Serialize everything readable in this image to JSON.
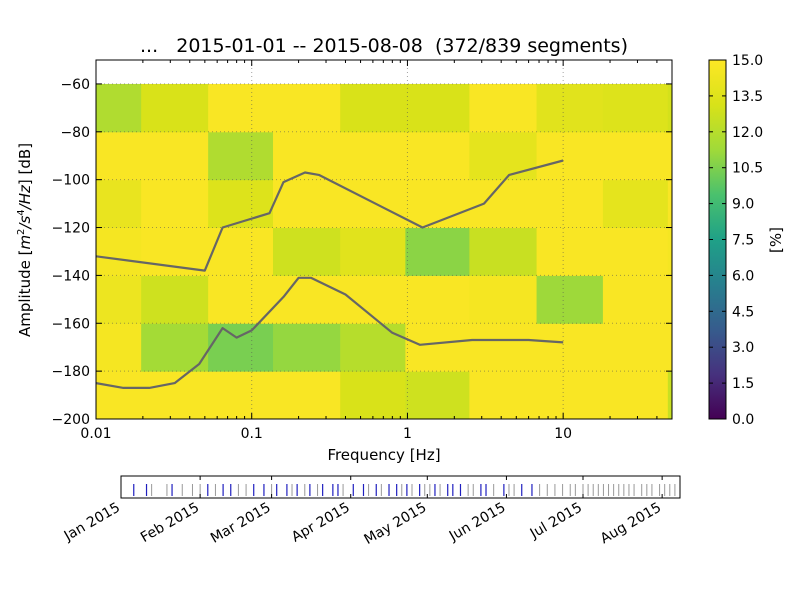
{
  "chart_data": [
    {
      "type": "heatmap",
      "title": "...   2015-01-01 -- 2015-08-08  (372/839 segments)",
      "xlabel": "Frequency [Hz]",
      "ylabel": "Amplitude [$m^2/s^4/Hz$] [dB]",
      "ylabel_parts": {
        "prefix": "Amplitude [",
        "m": "m",
        "sup2": "2",
        "s": "/s",
        "sup4": "4",
        "hz": "/Hz",
        "suffix": "] [dB]"
      },
      "x_scale": "log",
      "xlim": [
        0.01,
        50
      ],
      "ylim": [
        -200,
        -50
      ],
      "x_ticks": [
        0.01,
        0.1,
        1,
        10
      ],
      "x_tick_labels": [
        "0.01",
        "0.1",
        "1",
        "10"
      ],
      "y_ticks": [
        -200,
        -180,
        -160,
        -140,
        -120,
        -100,
        -80,
        -60
      ],
      "y_tick_labels": [
        "−200",
        "−180",
        "−160",
        "−140",
        "−120",
        "−100",
        "−80",
        "−60"
      ],
      "grid": true,
      "x_edges": [
        0.01,
        0.0195,
        0.0525,
        0.137,
        0.37,
        0.97,
        2.5,
        6.75,
        18,
        47,
        50
      ],
      "y_edges": [
        -200,
        -180,
        -160,
        -140,
        -120,
        -100,
        -80,
        -60
      ],
      "cell_values": [
        [
          14.8,
          14.8,
          14.8,
          14.8,
          13.2,
          12.8,
          14.8,
          14.8,
          14.8,
          12.6
        ],
        [
          14.6,
          11.4,
          10.4,
          11.0,
          12.0,
          14.8,
          14.8,
          14.8,
          14.8,
          14.8
        ],
        [
          14.2,
          12.8,
          14.8,
          14.8,
          14.8,
          14.8,
          14.6,
          11.2,
          14.8,
          14.8
        ],
        [
          14.6,
          14.8,
          14.8,
          12.8,
          13.6,
          10.8,
          12.6,
          14.8,
          14.8,
          14.6
        ],
        [
          14.0,
          14.8,
          13.4,
          14.8,
          14.8,
          14.8,
          14.8,
          14.8,
          13.8,
          14.8
        ],
        [
          14.8,
          14.8,
          11.8,
          14.8,
          14.8,
          14.8,
          13.8,
          14.8,
          14.8,
          14.8
        ],
        [
          11.8,
          13.2,
          14.8,
          14.8,
          13.2,
          13.2,
          14.8,
          13.6,
          13.4,
          13.0
        ]
      ],
      "series": [
        {
          "x": [
            0.01,
            0.05,
            0.065,
            0.13,
            0.16,
            0.22,
            0.27,
            1.25,
            3.1,
            4.5,
            10
          ],
          "values": [
            -132,
            -138,
            -120,
            -114,
            -101,
            -97,
            -98,
            -120,
            -110,
            -98,
            -92
          ],
          "color": "#666666"
        },
        {
          "x": [
            0.01,
            0.015,
            0.022,
            0.032,
            0.046,
            0.065,
            0.08,
            0.1,
            0.16,
            0.2,
            0.24,
            0.4,
            0.8,
            1.2,
            2.6,
            6,
            10
          ],
          "values": [
            -185,
            -187,
            -187,
            -185,
            -177,
            -162,
            -166,
            -163,
            -149,
            -141,
            -141,
            -148,
            -164,
            -169,
            -167,
            -167,
            -168
          ],
          "color": "#666666"
        }
      ],
      "colorbar": {
        "label": "[%]",
        "range": [
          0,
          15
        ],
        "ticks": [
          "0.0",
          "1.5",
          "3.0",
          "4.5",
          "6.0",
          "7.5",
          "9.0",
          "10.5",
          "12.0",
          "13.5",
          "15.0"
        ],
        "colormap": "viridis"
      }
    },
    {
      "type": "timeline",
      "x_tick_labels": [
        "Jan 2015",
        "Feb 2015",
        "Mar 2015",
        "Apr 2015",
        "May 2015",
        "Jun 2015",
        "Jul 2015",
        "Aug 2015"
      ],
      "x_tick_dates": [
        "2015-01-01",
        "2015-02-01",
        "2015-03-01",
        "2015-04-01",
        "2015-05-01",
        "2015-06-01",
        "2015-07-01",
        "2015-08-01"
      ],
      "xlim": [
        "2015-01-01",
        "2015-08-08"
      ],
      "used_color": "#1f1fbf",
      "unused_color": "#999999",
      "used_dates": [
        "2015-01-06",
        "2015-01-11",
        "2015-01-21",
        "2015-02-04",
        "2015-02-10",
        "2015-02-13",
        "2015-02-22",
        "2015-02-26",
        "2015-03-03",
        "2015-03-07",
        "2015-03-11",
        "2015-03-16",
        "2015-03-21",
        "2015-03-25",
        "2015-03-27",
        "2015-04-02",
        "2015-04-06",
        "2015-04-11",
        "2015-04-16",
        "2015-04-19",
        "2015-04-23",
        "2015-04-28",
        "2015-05-04",
        "2015-05-09",
        "2015-05-11",
        "2015-05-14",
        "2015-05-22",
        "2015-05-24",
        "2015-05-31",
        "2015-06-07",
        "2015-06-11"
      ],
      "unused_dates": [
        "2015-01-13",
        "2015-01-19",
        "2015-01-25",
        "2015-01-29",
        "2015-02-01",
        "2015-02-07",
        "2015-02-16",
        "2015-02-19",
        "2015-03-01",
        "2015-03-09",
        "2015-03-14",
        "2015-03-19",
        "2015-03-29",
        "2015-04-08",
        "2015-04-13",
        "2015-04-21",
        "2015-04-25",
        "2015-04-30",
        "2015-05-02",
        "2015-05-06",
        "2015-05-17",
        "2015-05-19",
        "2015-05-27",
        "2015-06-02",
        "2015-06-04",
        "2015-06-14",
        "2015-06-17",
        "2015-06-20",
        "2015-06-23",
        "2015-06-26",
        "2015-06-28",
        "2015-07-01",
        "2015-07-03",
        "2015-07-05",
        "2015-07-07",
        "2015-07-09",
        "2015-07-11",
        "2015-07-13",
        "2015-07-15",
        "2015-07-17",
        "2015-07-19",
        "2015-07-21",
        "2015-07-24",
        "2015-07-26",
        "2015-07-28",
        "2015-07-31",
        "2015-08-02",
        "2015-08-04",
        "2015-08-06"
      ]
    }
  ]
}
